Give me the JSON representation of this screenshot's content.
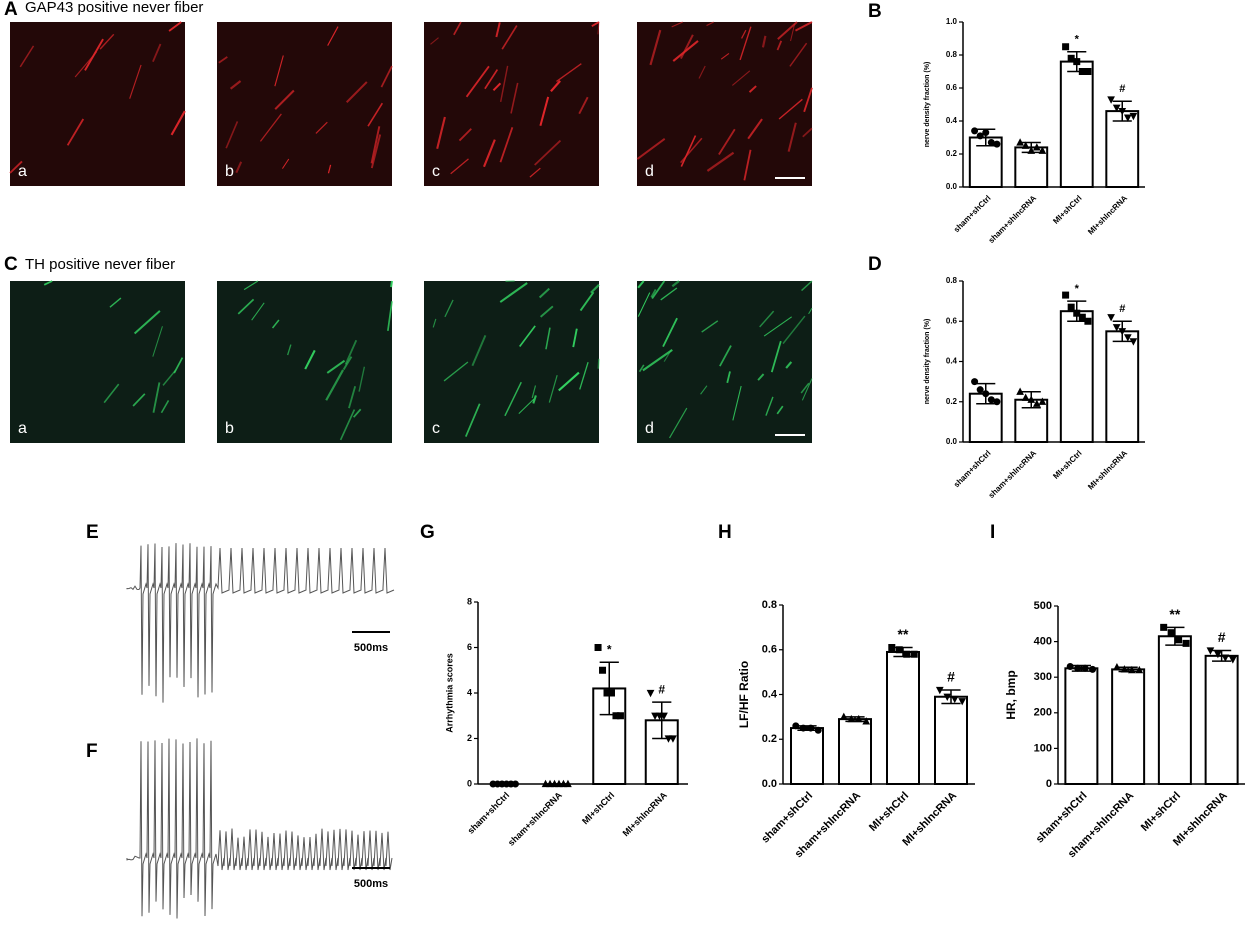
{
  "figure": {
    "panel_letters": [
      "A",
      "B",
      "C",
      "D",
      "E",
      "F",
      "G",
      "H",
      "I"
    ],
    "image_rows": [
      {
        "title": "GAP43 positive never fiber",
        "labels": [
          "a",
          "b",
          "c",
          "d"
        ],
        "color": "#e0262a"
      },
      {
        "title": "TH positive never fiber",
        "labels": [
          "a",
          "b",
          "c",
          "d"
        ],
        "color": "#33d060"
      }
    ],
    "scale_labels": [
      "500ms",
      "500ms"
    ]
  },
  "chart_data": [
    {
      "type": "bar",
      "ylabel": "nerve density fraction (%)",
      "categories": [
        "sham+shCtrl",
        "sham+shlncRNA",
        "MI+shCtrl",
        "MI+shlncRNA"
      ],
      "values": [
        0.3,
        0.24,
        0.76,
        0.46
      ],
      "errors": [
        0.05,
        0.03,
        0.06,
        0.06
      ],
      "points": [
        [
          0.34,
          0.31,
          0.33,
          0.27,
          0.26
        ],
        [
          0.27,
          0.25,
          0.22,
          0.24,
          0.22
        ],
        [
          0.85,
          0.78,
          0.76,
          0.7,
          0.7
        ],
        [
          0.53,
          0.48,
          0.46,
          0.42,
          0.43
        ]
      ],
      "annotations": [
        {
          "text": "*",
          "category": "MI+shCtrl"
        },
        {
          "text": "#",
          "category": "MI+shlncRNA"
        }
      ],
      "color": "#ffffff",
      "ylim": [
        0,
        1
      ],
      "yticks": [
        {
          "value": 0,
          "label": "0.0"
        },
        0.2,
        0.4,
        0.6,
        0.8,
        {
          "value": 1,
          "label": "1.0"
        }
      ]
    },
    {
      "type": "bar",
      "ylabel": "nerve density fraction (%)",
      "categories": [
        "sham+shCtrl",
        "sham+shlncRNA",
        "MI+shCtrl",
        "MI+shlncRNA"
      ],
      "values": [
        0.24,
        0.21,
        0.65,
        0.55
      ],
      "errors": [
        0.05,
        0.04,
        0.05,
        0.05
      ],
      "points": [
        [
          0.3,
          0.26,
          0.24,
          0.21,
          0.2
        ],
        [
          0.25,
          0.22,
          0.21,
          0.19,
          0.2
        ],
        [
          0.73,
          0.67,
          0.64,
          0.62,
          0.6
        ],
        [
          0.62,
          0.57,
          0.55,
          0.52,
          0.5
        ]
      ],
      "annotations": [
        {
          "text": "*",
          "category": "MI+shCtrl"
        },
        {
          "text": "#",
          "category": "MI+shlncRNA"
        }
      ],
      "color": "#ffffff",
      "ylim": [
        0,
        0.8
      ],
      "yticks": [
        {
          "value": 0,
          "label": "0.0"
        },
        0.2,
        0.4,
        0.6,
        0.8
      ]
    },
    {
      "type": "bar",
      "ylabel": "Arrhythmia scores",
      "categories": [
        "sham+shCtrl",
        "sham+shlncRNA",
        "MI+shCtrl",
        "MI+shlncRNA"
      ],
      "values": [
        0,
        0,
        4.2,
        2.8
      ],
      "errors": [
        0,
        0,
        1.15,
        0.8
      ],
      "points": [
        [
          0,
          0,
          0,
          0,
          0,
          0
        ],
        [
          0,
          0,
          0,
          0,
          0,
          0
        ],
        [
          6,
          5,
          4,
          4,
          3,
          3
        ],
        [
          4,
          3,
          3,
          3,
          2,
          2
        ]
      ],
      "annotations": [
        {
          "text": "*",
          "category": "MI+shCtrl"
        },
        {
          "text": "#",
          "category": "MI+shlncRNA"
        }
      ],
      "color": "#ffffff",
      "ylim": [
        0,
        8
      ],
      "yticks": [
        0,
        2,
        4,
        6,
        8
      ]
    },
    {
      "type": "bar",
      "ylabel": "LF/HF  Ratio",
      "categories": [
        "sham+shCtrl",
        "sham+shlncRNA",
        "MI+shCtrl",
        "MI+shlncRNA"
      ],
      "values": [
        0.25,
        0.29,
        0.59,
        0.39
      ],
      "errors": [
        0.01,
        0.01,
        0.02,
        0.03
      ],
      "points": [
        [
          0.26,
          0.25,
          0.25,
          0.24
        ],
        [
          0.3,
          0.29,
          0.29,
          0.28
        ],
        [
          0.61,
          0.6,
          0.58,
          0.58
        ],
        [
          0.42,
          0.39,
          0.38,
          0.37
        ]
      ],
      "annotations": [
        {
          "text": "**",
          "category": "MI+shCtrl"
        },
        {
          "text": "#",
          "category": "MI+shlncRNA"
        }
      ],
      "color": "#ffffff",
      "ylim": [
        0,
        0.8
      ],
      "yticks": [
        {
          "value": 0,
          "label": "0.0"
        },
        0.2,
        0.4,
        0.6,
        0.8
      ]
    },
    {
      "type": "bar",
      "ylabel": "HR, bmp",
      "categories": [
        "sham+shCtrl",
        "sham+shlncRNA",
        "MI+shCtrl",
        "MI+shlncRNA"
      ],
      "values": [
        325,
        322,
        415,
        360
      ],
      "errors": [
        8,
        6,
        25,
        15
      ],
      "points": [
        [
          330,
          325,
          325,
          322
        ],
        [
          328,
          322,
          320,
          320
        ],
        [
          440,
          425,
          405,
          395
        ],
        [
          375,
          365,
          355,
          350
        ]
      ],
      "annotations": [
        {
          "text": "**",
          "category": "MI+shCtrl"
        },
        {
          "text": "#",
          "category": "MI+shlncRNA"
        }
      ],
      "color": "#ffffff",
      "ylim": [
        0,
        500
      ],
      "yticks": [
        0,
        100,
        200,
        300,
        400,
        500
      ]
    }
  ]
}
